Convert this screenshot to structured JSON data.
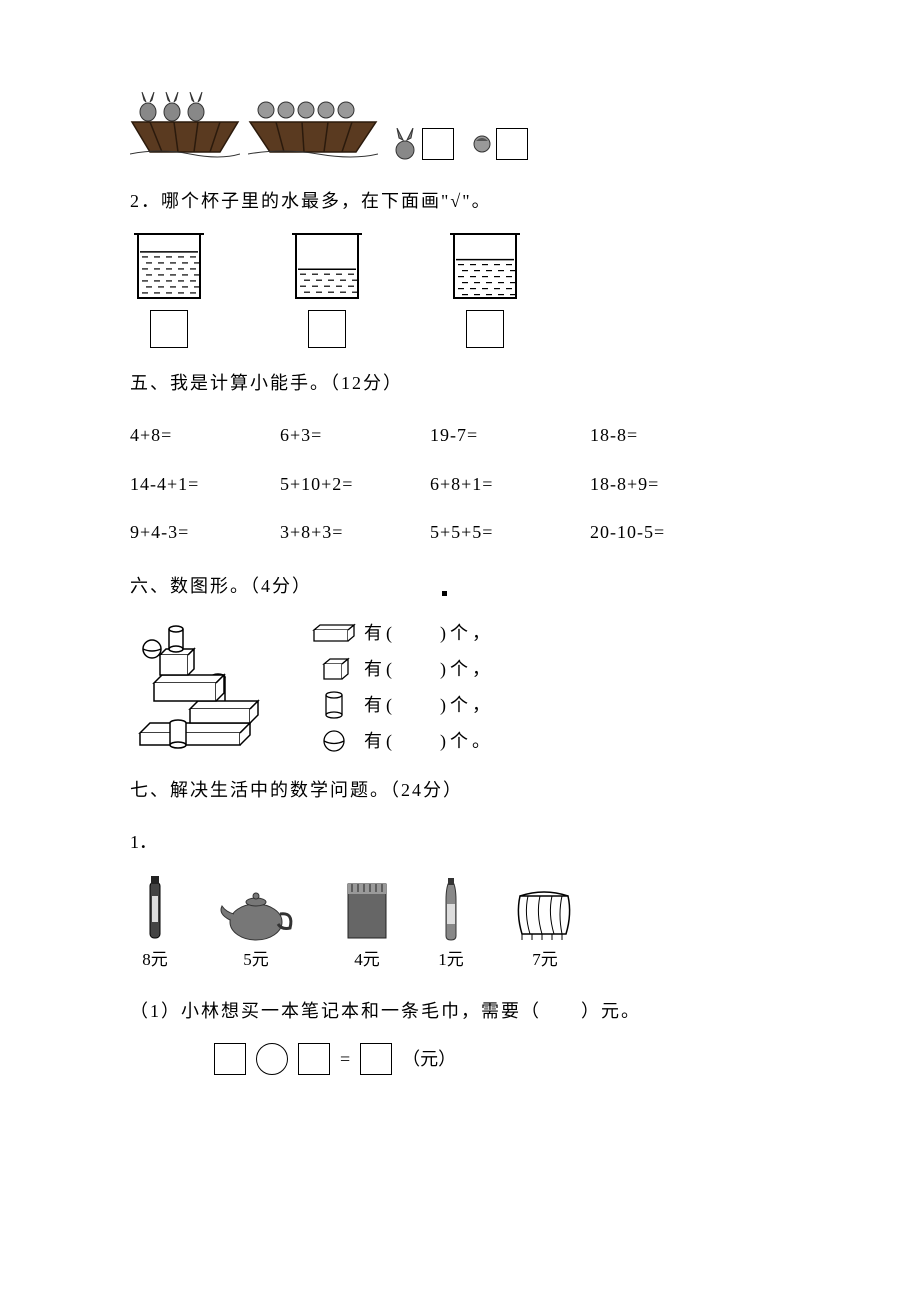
{
  "q1_image_alt": "两只船，一只载3只兔子，一只载5个小孩；右侧一只兔子头像和一个空方框，再右侧一个小孩头像和一个空方框",
  "q2": {
    "text": "2．哪个杯子里的水最多，在下面画\"√\"。",
    "levels": [
      0.72,
      0.45,
      0.6
    ]
  },
  "sec5": {
    "title": "五、我是计算小能手。（12分）",
    "rows": [
      [
        "4+8=",
        "6+3=",
        "19-7=",
        "18-8="
      ],
      [
        "14-4+1=",
        "5+10+2=",
        "6+8+1=",
        "18-8+9="
      ],
      [
        "9+4-3=",
        "3+8+3=",
        "5+5+5=",
        "20-10-5="
      ]
    ]
  },
  "sec6": {
    "title": "六、数图形。（4分）",
    "lines": [
      "有(　　)个，",
      "有(　　)个，",
      "有(　　)个，",
      "有(　　)个。"
    ]
  },
  "sec7": {
    "title": "七、解决生活中的数学问题。（24分）",
    "num1": "1．",
    "items": [
      {
        "name": "洗发水",
        "price": "8元"
      },
      {
        "name": "茶壶",
        "price": "5元"
      },
      {
        "name": "笔记本",
        "price": "4元"
      },
      {
        "name": "水瓶",
        "price": "1元"
      },
      {
        "name": "毛巾",
        "price": "7元"
      }
    ],
    "sub1": "（1）小林想买一本笔记本和一条毛巾，需要（　　）元。",
    "eq_suffix": "（元）"
  }
}
